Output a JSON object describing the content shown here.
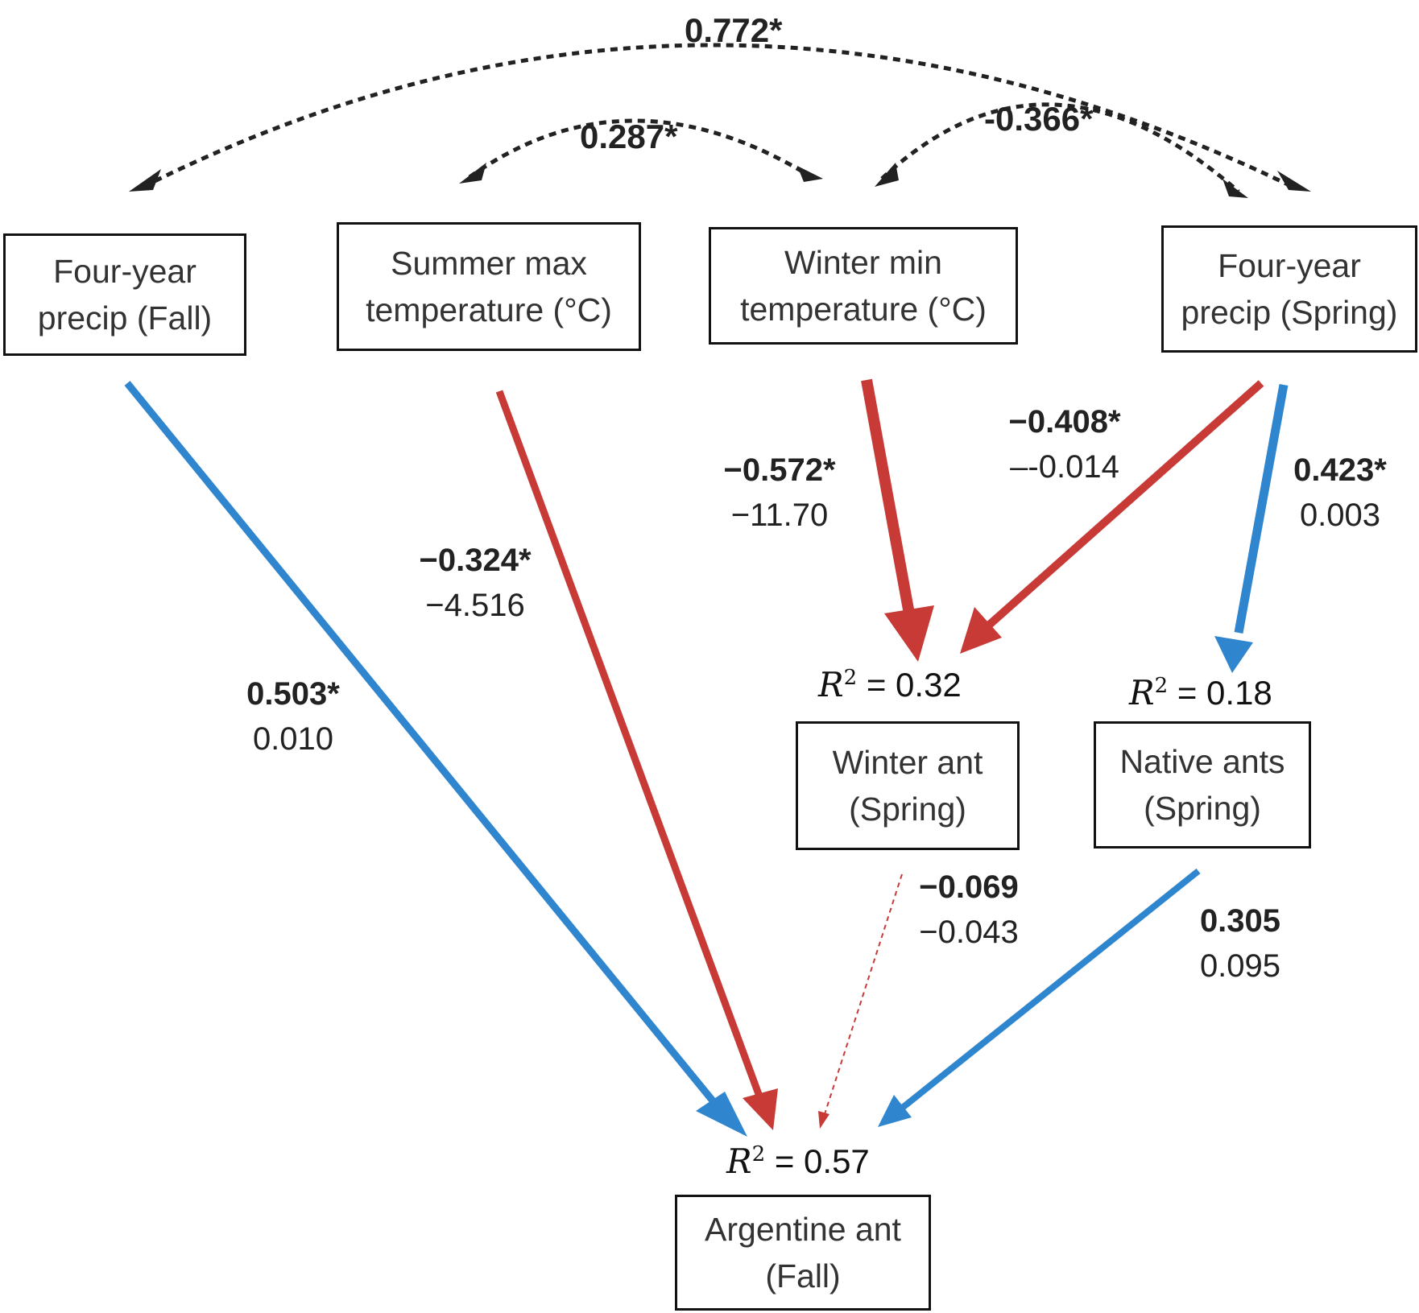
{
  "nodes": {
    "fall_precip": {
      "line1": "Four-year",
      "line2": "precip (Fall)"
    },
    "summer_max": {
      "line1": "Summer max",
      "line2": "temperature (°C)"
    },
    "winter_min": {
      "line1": "Winter min",
      "line2": "temperature (°C)"
    },
    "spring_precip": {
      "line1": "Four-year",
      "line2": "precip (Spring)"
    },
    "winter_ant": {
      "line1": "Winter ant",
      "line2": "(Spring)"
    },
    "native_ants": {
      "line1": "Native ants",
      "line2": "(Spring)"
    },
    "argentine_ant": {
      "line1": "Argentine ant",
      "line2": "(Fall)"
    }
  },
  "correlations": {
    "fall_spring_precip": "0.772*",
    "summer_winter_temp": "0.287*",
    "winter_temp_spring_precip": "-0.366*"
  },
  "paths": {
    "fall_precip_to_argentine": {
      "std": "0.503*",
      "unstd": "0.010",
      "color": "#2f86cf"
    },
    "summer_max_to_argentine": {
      "std": "−0.324*",
      "unstd": "−4.516",
      "color": "#c73a36"
    },
    "winter_min_to_winter_ant": {
      "std": "−0.572*",
      "unstd": "−11.70",
      "color": "#c73a36"
    },
    "spring_precip_to_winter_ant": {
      "std": "−0.408*",
      "unstd": "–-0.014",
      "color": "#c73a36"
    },
    "spring_precip_to_native": {
      "std": "0.423*",
      "unstd": "0.003",
      "color": "#2f86cf"
    },
    "winter_ant_to_argentine": {
      "std": "−0.069",
      "unstd": "−0.043",
      "color": "#c73a36"
    },
    "native_to_argentine": {
      "std": "0.305",
      "unstd": "0.095",
      "color": "#2f86cf"
    }
  },
  "r_squared": {
    "symbol": "R",
    "exponent": "2",
    "winter_ant": "= 0.32",
    "native_ants": "= 0.18",
    "argentine_ant": "= 0.57"
  }
}
